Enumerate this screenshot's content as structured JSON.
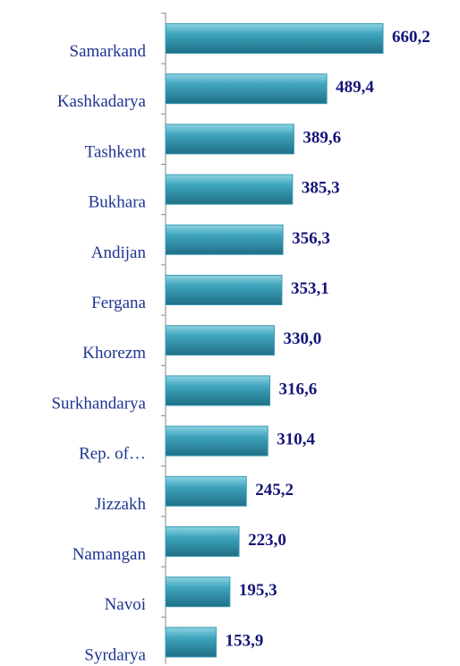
{
  "chart_data": {
    "type": "bar",
    "orientation": "horizontal",
    "categories": [
      "Samarkand",
      "Kashkadarya",
      "Tashkent",
      "Bukhara",
      "Andijan",
      "Fergana",
      "Khorezm",
      "Surkhandarya",
      "Rep. of…",
      "Jizzakh",
      "Namangan",
      "Navoi",
      "Syrdarya"
    ],
    "values": [
      660.2,
      489.4,
      389.6,
      385.3,
      356.3,
      353.1,
      330.0,
      316.6,
      310.4,
      245.2,
      223.0,
      195.3,
      153.9
    ],
    "value_labels": [
      "660,2",
      "489,4",
      "389,6",
      "385,3",
      "356,3",
      "353,1",
      "330,0",
      "316,6",
      "310,4",
      "245,2",
      "223,0",
      "195,3",
      "153,9"
    ],
    "color": "#3a9ab2"
  }
}
